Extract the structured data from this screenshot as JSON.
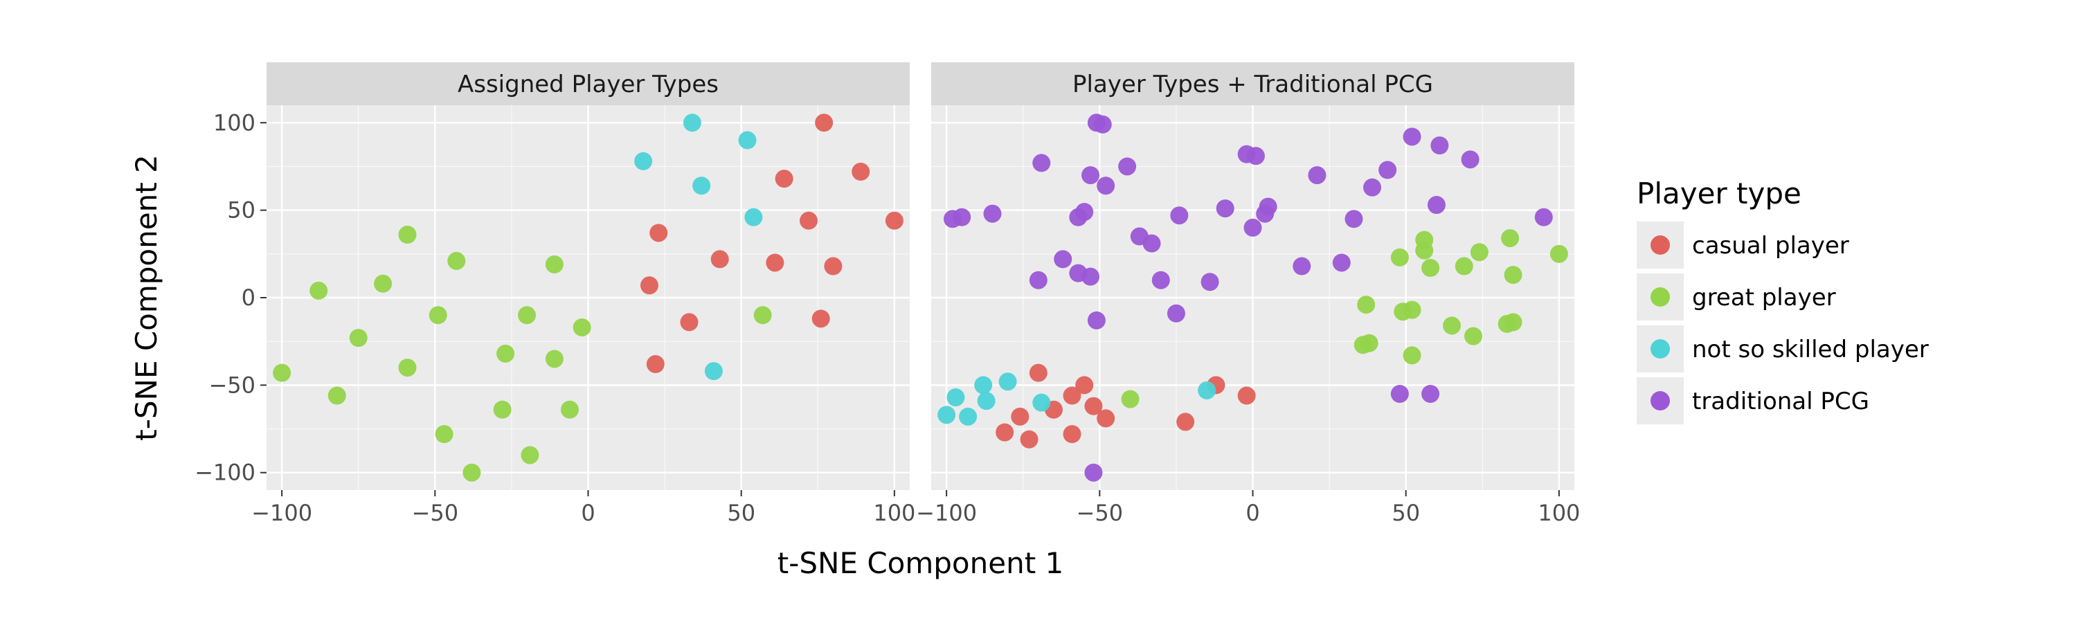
{
  "chart_data": {
    "type": "scatter",
    "xlabel": "t-SNE Component 1",
    "ylabel": "t-SNE Component 2",
    "xlim": [
      -105,
      105
    ],
    "ylim": [
      -110,
      110
    ],
    "x_ticks": [
      -100,
      -50,
      0,
      50,
      100
    ],
    "x_tick_labels": [
      "−100",
      "−50",
      "0",
      "50",
      "100"
    ],
    "y_ticks": [
      100,
      50,
      0,
      -50,
      -100
    ],
    "y_tick_labels": [
      "100",
      "50",
      "0",
      "−50",
      "−100"
    ],
    "grid": true,
    "legend": {
      "title": "Player type",
      "position": "right",
      "entries": [
        {
          "label": "casual player",
          "color": "#e0615a"
        },
        {
          "label": "great player",
          "color": "#94d44a"
        },
        {
          "label": "not so skilled player",
          "color": "#4cd3d7"
        },
        {
          "label": "traditional PCG",
          "color": "#9b57d6"
        }
      ]
    },
    "panels": [
      {
        "title": "Assigned Player Types",
        "series": [
          {
            "name": "casual player",
            "color": "#e0615a",
            "points": [
              [
                77,
                100
              ],
              [
                89,
                72
              ],
              [
                100,
                44
              ],
              [
                64,
                68
              ],
              [
                72,
                44
              ],
              [
                23,
                37
              ],
              [
                43,
                22
              ],
              [
                61,
                20
              ],
              [
                80,
                18
              ],
              [
                20,
                7
              ],
              [
                33,
                -14
              ],
              [
                76,
                -12
              ],
              [
                22,
                -38
              ]
            ]
          },
          {
            "name": "great player",
            "color": "#94d44a",
            "points": [
              [
                -59,
                36
              ],
              [
                -43,
                21
              ],
              [
                -88,
                4
              ],
              [
                -67,
                8
              ],
              [
                -11,
                19
              ],
              [
                -49,
                -10
              ],
              [
                -20,
                -10
              ],
              [
                -2,
                -17
              ],
              [
                -75,
                -23
              ],
              [
                -27,
                -32
              ],
              [
                -11,
                -35
              ],
              [
                -59,
                -40
              ],
              [
                -100,
                -43
              ],
              [
                -82,
                -56
              ],
              [
                -28,
                -64
              ],
              [
                -6,
                -64
              ],
              [
                -47,
                -78
              ],
              [
                -19,
                -90
              ],
              [
                -38,
                -100
              ],
              [
                57,
                -10
              ]
            ]
          },
          {
            "name": "not so skilled player",
            "color": "#4cd3d7",
            "points": [
              [
                34,
                100
              ],
              [
                52,
                90
              ],
              [
                18,
                78
              ],
              [
                37,
                64
              ],
              [
                54,
                46
              ],
              [
                41,
                -42
              ]
            ]
          }
        ]
      },
      {
        "title": "Player Types + Traditional PCG",
        "series": [
          {
            "name": "casual player",
            "color": "#e0615a",
            "points": [
              [
                -70,
                -43
              ],
              [
                -55,
                -50
              ],
              [
                -59,
                -56
              ],
              [
                -65,
                -64
              ],
              [
                -52,
                -62
              ],
              [
                -76,
                -68
              ],
              [
                -81,
                -77
              ],
              [
                -73,
                -81
              ],
              [
                -59,
                -78
              ],
              [
                -48,
                -69
              ],
              [
                -12,
                -50
              ],
              [
                -2,
                -56
              ],
              [
                -22,
                -71
              ]
            ]
          },
          {
            "name": "great player",
            "color": "#94d44a",
            "points": [
              [
                56,
                33
              ],
              [
                56,
                27
              ],
              [
                74,
                26
              ],
              [
                84,
                34
              ],
              [
                100,
                25
              ],
              [
                48,
                23
              ],
              [
                58,
                17
              ],
              [
                69,
                18
              ],
              [
                85,
                13
              ],
              [
                37,
                -4
              ],
              [
                49,
                -8
              ],
              [
                52,
                -7
              ],
              [
                65,
                -16
              ],
              [
                83,
                -15
              ],
              [
                85,
                -14
              ],
              [
                38,
                -26
              ],
              [
                36,
                -27
              ],
              [
                72,
                -22
              ],
              [
                52,
                -33
              ],
              [
                -40,
                -58
              ]
            ]
          },
          {
            "name": "not so skilled player",
            "color": "#4cd3d7",
            "points": [
              [
                -88,
                -50
              ],
              [
                -80,
                -48
              ],
              [
                -97,
                -57
              ],
              [
                -87,
                -59
              ],
              [
                -69,
                -60
              ],
              [
                -100,
                -67
              ],
              [
                -93,
                -68
              ],
              [
                -15,
                -53
              ]
            ]
          },
          {
            "name": "traditional PCG",
            "color": "#9b57d6",
            "points": [
              [
                -51,
                100
              ],
              [
                -49,
                99
              ],
              [
                -2,
                82
              ],
              [
                1,
                81
              ],
              [
                -69,
                77
              ],
              [
                -41,
                75
              ],
              [
                -53,
                70
              ],
              [
                21,
                70
              ],
              [
                44,
                73
              ],
              [
                52,
                92
              ],
              [
                61,
                87
              ],
              [
                71,
                79
              ],
              [
                -48,
                64
              ],
              [
                39,
                63
              ],
              [
                -98,
                45
              ],
              [
                -95,
                46
              ],
              [
                -85,
                48
              ],
              [
                -57,
                46
              ],
              [
                -55,
                49
              ],
              [
                -24,
                47
              ],
              [
                -9,
                51
              ],
              [
                4,
                48
              ],
              [
                5,
                52
              ],
              [
                33,
                45
              ],
              [
                60,
                53
              ],
              [
                95,
                46
              ],
              [
                0,
                40
              ],
              [
                -37,
                35
              ],
              [
                -33,
                31
              ],
              [
                -62,
                22
              ],
              [
                -57,
                14
              ],
              [
                -53,
                12
              ],
              [
                -70,
                10
              ],
              [
                -30,
                10
              ],
              [
                -14,
                9
              ],
              [
                16,
                18
              ],
              [
                29,
                20
              ],
              [
                -25,
                -9
              ],
              [
                -51,
                -13
              ],
              [
                48,
                -55
              ],
              [
                58,
                -55
              ],
              [
                -52,
                -100
              ]
            ]
          }
        ]
      }
    ]
  }
}
